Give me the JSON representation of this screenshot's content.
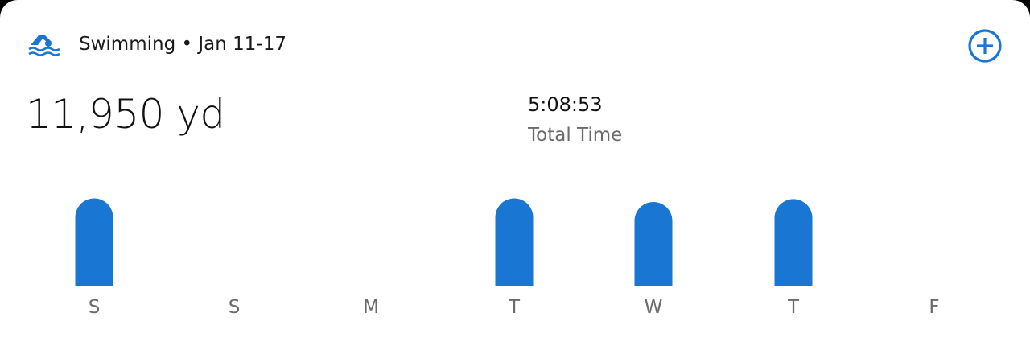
{
  "header": {
    "icon": "swimming-icon",
    "title": "Swimming • Jan 11-17",
    "add_icon": "plus-circle-icon"
  },
  "summary": {
    "distance": "11,950 yd",
    "time": "5:08:53",
    "time_label": "Total Time"
  },
  "colors": {
    "accent": "#1976d2"
  },
  "chart_data": {
    "type": "bar",
    "categories": [
      "S",
      "S",
      "M",
      "T",
      "W",
      "T",
      "F"
    ],
    "values": [
      3025,
      0,
      0,
      3025,
      2900,
      3000,
      0
    ],
    "ylim": [
      0,
      3025
    ],
    "grid": false,
    "title": "",
    "xlabel": "",
    "ylabel": ""
  }
}
